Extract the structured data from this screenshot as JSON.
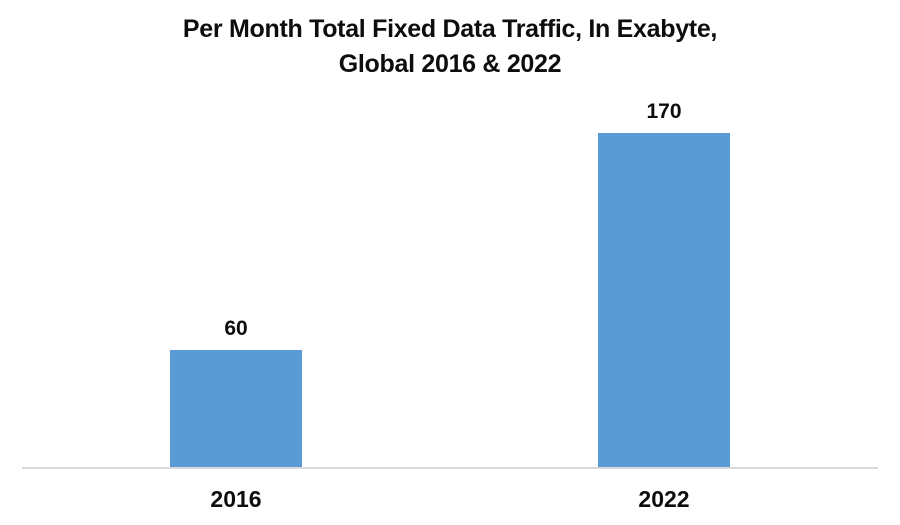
{
  "chart_data": {
    "type": "bar",
    "title_lines": [
      "Per Month Total Fixed Data Traffic, In Exabyte,",
      "Global 2016 & 2022"
    ],
    "title": "Per Month Total Fixed Data Traffic, In Exabyte, Global 2016 & 2022",
    "categories": [
      "2016",
      "2022"
    ],
    "values": [
      60,
      170
    ],
    "data_labels": [
      60,
      170
    ],
    "xlabel": "",
    "ylabel": "",
    "ylim": [
      0,
      170
    ],
    "grid": false,
    "legend_position": "none",
    "bar_color": "#5B9BD5",
    "axis_line_color": "#D9D9D9",
    "text_color": "#0D0D0D",
    "background_color": "#FFFFFF"
  }
}
